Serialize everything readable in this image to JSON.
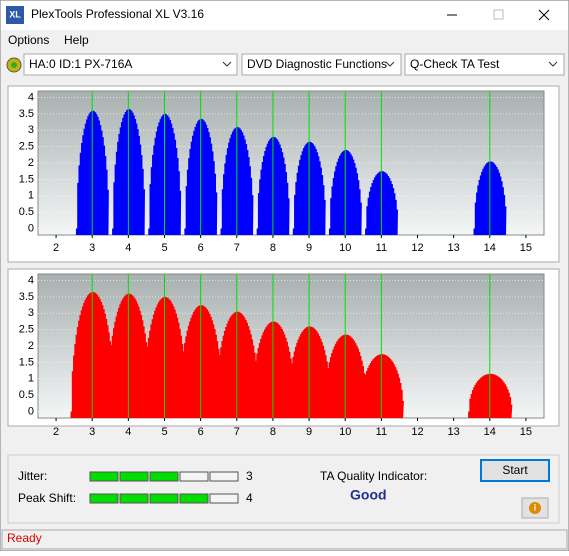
{
  "window": {
    "icon": "XL",
    "title": "PlexTools Professional XL V3.16",
    "menu": [
      "Options",
      "Help"
    ],
    "device": "HA:0 ID:1  PX-716A",
    "function": "DVD Diagnostic Functions",
    "test": "Q-Check TA Test"
  },
  "chart_data": [
    {
      "type": "bar",
      "x": [
        3,
        4,
        5,
        6,
        7,
        8,
        9,
        10,
        11,
        14
      ],
      "values": [
        3.6,
        3.65,
        3.5,
        3.35,
        3.1,
        2.8,
        2.65,
        2.4,
        1.75,
        2.05
      ],
      "color": "#0000ff",
      "xlim": [
        1.5,
        15.5
      ],
      "xticks": [
        2,
        3,
        4,
        5,
        6,
        7,
        8,
        9,
        10,
        11,
        12,
        13,
        14,
        15
      ],
      "ylim": [
        -0.2,
        4.2
      ],
      "yticks": [
        0,
        0.5,
        1,
        1.5,
        2,
        2.5,
        3,
        3.5,
        4
      ]
    },
    {
      "type": "bar",
      "x": [
        3,
        4,
        5,
        6,
        7,
        8,
        9,
        10,
        11,
        14
      ],
      "values": [
        3.65,
        3.6,
        3.5,
        3.25,
        3.05,
        2.75,
        2.6,
        2.35,
        1.75,
        1.15
      ],
      "color": "#ff0000",
      "xlim": [
        1.5,
        15.5
      ],
      "xticks": [
        2,
        3,
        4,
        5,
        6,
        7,
        8,
        9,
        10,
        11,
        12,
        13,
        14,
        15
      ],
      "ylim": [
        -0.2,
        4.2
      ],
      "yticks": [
        0,
        0.5,
        1,
        1.5,
        2,
        2.5,
        3,
        3.5,
        4
      ]
    }
  ],
  "metrics": {
    "jitter": {
      "label": "Jitter:",
      "value": 3,
      "max": 5
    },
    "peak_shift": {
      "label": "Peak Shift:",
      "value": 4,
      "max": 5
    },
    "quality_label": "TA Quality Indicator:",
    "quality": "Good"
  },
  "buttons": {
    "start": "Start"
  },
  "status": "Ready"
}
